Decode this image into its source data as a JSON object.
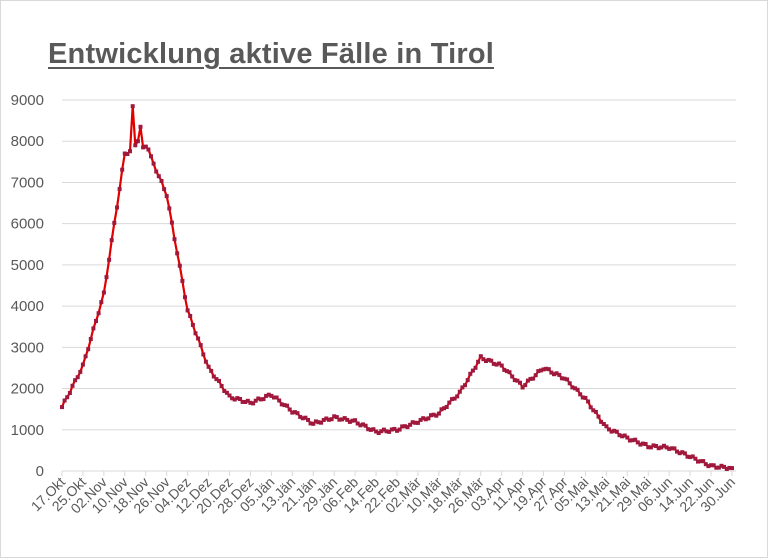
{
  "chart_data": {
    "type": "line",
    "title": "Entwicklung aktive Fälle in Tirol",
    "xlabel": "",
    "ylabel": "",
    "ylim": [
      0,
      9000
    ],
    "yticks": [
      0,
      1000,
      2000,
      3000,
      4000,
      5000,
      6000,
      7000,
      8000,
      9000
    ],
    "grid": true,
    "legend": null,
    "line_color": "#e00000",
    "marker_color": "#a0183c",
    "categories": [
      "17.Okt",
      "25.Okt",
      "02.Nov",
      "10.Nov",
      "18.Nov",
      "26.Nov",
      "04.Dez",
      "12.Dez",
      "20.Dez",
      "28.Dez",
      "05.Jän",
      "13.Jän",
      "21.Jän",
      "29.Jän",
      "06.Feb",
      "14.Feb",
      "22.Feb",
      "02.Mär",
      "10.Mär",
      "18.Mär",
      "26.Mär",
      "03.Apr",
      "11.Apr",
      "19.Apr",
      "27.Apr",
      "05.Mai",
      "13.Mai",
      "21.Mai",
      "29.Mai",
      "06.Jun",
      "14.Jun",
      "22.Jun",
      "30.Jun"
    ],
    "series": [
      {
        "name": "Aktive Fälle",
        "values": [
          1550,
          2550,
          4300,
          7700,
          7900,
          6700,
          3900,
          2500,
          1800,
          1650,
          1850,
          1450,
          1150,
          1300,
          1200,
          950,
          1000,
          1200,
          1400,
          1900,
          2750,
          2550,
          2050,
          2500,
          2250,
          1750,
          1050,
          800,
          600,
          570,
          350,
          120,
          70
        ]
      }
    ],
    "peaks": [
      {
        "date": "13.Nov",
        "value": 8850
      },
      {
        "date": "17.Nov",
        "value": 8350
      }
    ]
  }
}
